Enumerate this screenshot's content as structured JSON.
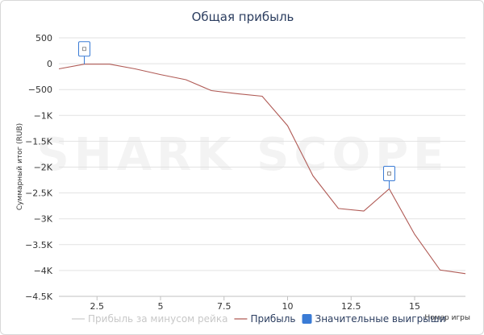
{
  "chart_data": {
    "type": "line",
    "title": "Общая прибыль",
    "xlabel": "Номер игры",
    "ylabel": "Суммарный итог (RUB)",
    "xlim": [
      1,
      17
    ],
    "ylim": [
      -4500,
      500
    ],
    "xticks": [
      2.5,
      5,
      7.5,
      10,
      12.5,
      15
    ],
    "xtick_labels": [
      "2.5",
      "5",
      "7.5",
      "10",
      "12.5",
      "15"
    ],
    "yticks": [
      500,
      0,
      -500,
      -1000,
      -1500,
      -2000,
      -2500,
      -3000,
      -3500,
      -4000,
      -4500
    ],
    "ytick_labels": [
      "500",
      "0",
      "−500",
      "−1K",
      "−1.5K",
      "−2K",
      "−2.5K",
      "−3K",
      "−3.5K",
      "−4K",
      "−4.5K"
    ],
    "grid": "horizontal",
    "legend_position": "bottom",
    "series": [
      {
        "name": "Прибыль за минусом рейка",
        "color": "#cccccc",
        "visible": false,
        "x": [],
        "y": []
      },
      {
        "name": "Прибыль",
        "color": "#b05a55",
        "visible": true,
        "x": [
          1,
          2,
          3,
          4,
          5,
          6,
          7,
          8,
          9,
          10,
          11,
          12,
          13,
          14,
          15,
          16,
          17
        ],
        "y": [
          -100,
          -10,
          -10,
          -100,
          -210,
          -310,
          -520,
          -580,
          -630,
          -1200,
          -2170,
          -2800,
          -2850,
          -2420,
          -3300,
          -3990,
          -4060
        ]
      },
      {
        "name": "Значительные выигрыши",
        "color": "#3a7bd5",
        "visible": true,
        "marker": "flag",
        "x": [
          2,
          14
        ],
        "y": [
          -10,
          -2420
        ]
      }
    ],
    "watermark": "SHARK SCOPE"
  }
}
